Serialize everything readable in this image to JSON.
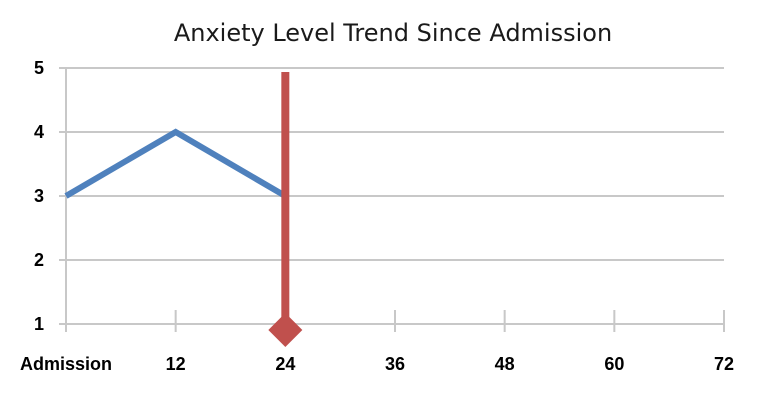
{
  "chart_data": {
    "type": "line",
    "title": "Anxiety Level Trend Since Admission",
    "xlabel": "",
    "ylabel": "",
    "x_ticks": [
      0,
      12,
      24,
      36,
      48,
      60,
      72
    ],
    "x_tick_labels": [
      "Admission",
      "12",
      "24",
      "36",
      "48",
      "60",
      "72"
    ],
    "xlim": [
      0,
      72
    ],
    "ylim": [
      1,
      5
    ],
    "y_ticks": [
      1,
      2,
      3,
      4,
      5
    ],
    "y_tick_labels": [
      "1",
      "2",
      "3",
      "4",
      "5"
    ],
    "grid": true,
    "series": [
      {
        "x": [
          0,
          12,
          24
        ],
        "values": [
          3,
          4,
          3
        ],
        "color": "#4f81bd"
      }
    ],
    "marker_line": {
      "x": 24,
      "y_from": 1,
      "y_to": 5,
      "color": "#c0504d",
      "marker": "diamond"
    }
  }
}
